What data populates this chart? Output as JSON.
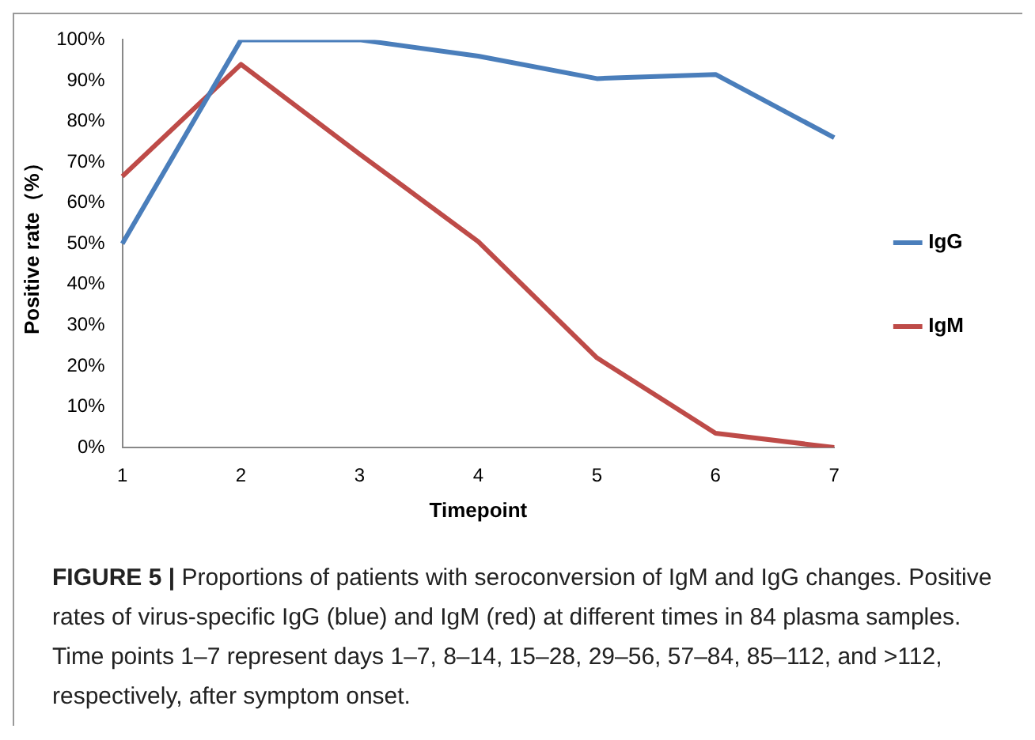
{
  "chart_data": {
    "type": "line",
    "xlabel": "Timepoint",
    "ylabel": "Positive rate（%）",
    "categories": [
      "1",
      "2",
      "3",
      "4",
      "5",
      "6",
      "7"
    ],
    "series": [
      {
        "name": "IgG",
        "color": "#4a7ebb",
        "values": [
          50,
          100,
          100,
          96,
          90.5,
          91.5,
          76
        ]
      },
      {
        "name": "IgM",
        "color": "#be4b48",
        "values": [
          66.5,
          94,
          72,
          50.5,
          22,
          3.5,
          0
        ]
      }
    ],
    "ylim": [
      0,
      100
    ],
    "yticks": [
      {
        "value": 0,
        "label": "0%"
      },
      {
        "value": 10,
        "label": "10%"
      },
      {
        "value": 20,
        "label": "20%"
      },
      {
        "value": 30,
        "label": "30%"
      },
      {
        "value": 40,
        "label": "40%"
      },
      {
        "value": 50,
        "label": "50%"
      },
      {
        "value": 60,
        "label": "60%"
      },
      {
        "value": 70,
        "label": "70%"
      },
      {
        "value": 80,
        "label": "80%"
      },
      {
        "value": 90,
        "label": "90%"
      },
      {
        "value": 100,
        "label": "100%"
      }
    ],
    "grid": false,
    "legend": "right",
    "marker": "none",
    "line_style": "solid",
    "annotations": [
      "FIGURE 5 | Proportions of patients with seroconversion of IgM and IgG changes. Positive rates of virus-specific IgG (blue) and IgM (red) at different times in 84 plasma samples. Time points 1–7 represent days 1–7, 8–14, 15–28, 29–56, 57–84, 85–112, and >112, respectively, after symptom onset."
    ]
  }
}
